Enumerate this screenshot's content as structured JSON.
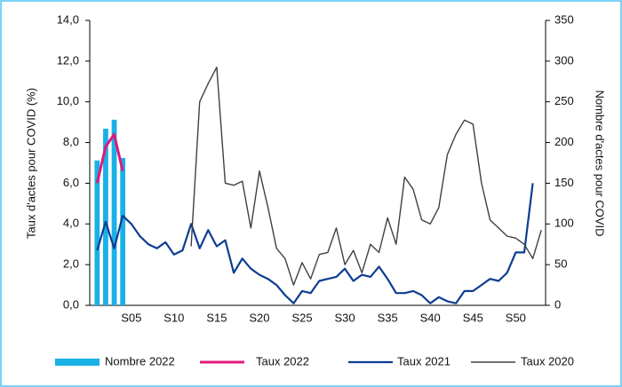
{
  "chart_data": {
    "type": "bar",
    "y_label": "Taux d'actes pour COVID (%)",
    "y2_label": "Nombre d'actes pour COVID",
    "categories": [
      null,
      null,
      null,
      null,
      "S05",
      null,
      null,
      null,
      null,
      "S10",
      null,
      null,
      null,
      null,
      "S15",
      null,
      null,
      null,
      null,
      "S20",
      null,
      null,
      null,
      null,
      "S25",
      null,
      null,
      null,
      null,
      "S30",
      null,
      null,
      null,
      null,
      "S35",
      null,
      null,
      null,
      null,
      "S40",
      null,
      null,
      null,
      null,
      "S45",
      null,
      null,
      null,
      null,
      "S50",
      null,
      null,
      null
    ],
    "ylim": [
      0,
      14
    ],
    "yticks": [
      {
        "value": 0,
        "label": "0,0"
      },
      {
        "value": 2,
        "label": "2,0"
      },
      {
        "value": 4,
        "label": "4,0"
      },
      {
        "value": 6,
        "label": "6,0"
      },
      {
        "value": 8,
        "label": "8,0"
      },
      {
        "value": 10,
        "label": "10,0"
      },
      {
        "value": 12,
        "label": "12,0"
      },
      {
        "value": 14,
        "label": "14,0"
      }
    ],
    "y2lim": [
      0,
      350
    ],
    "y2ticks": [
      0,
      50,
      100,
      150,
      200,
      250,
      300,
      350
    ],
    "legend": "bottom",
    "series": [
      {
        "name": "Nombre 2022",
        "type": "bar",
        "axis": "y2",
        "color": "#1ab0e8",
        "values": [
          178,
          217,
          228,
          181,
          null,
          null,
          null,
          null,
          null,
          null,
          null,
          null,
          null,
          null,
          null,
          null,
          null,
          null,
          null,
          null,
          null,
          null,
          null,
          null,
          null,
          null,
          null,
          null,
          null,
          null,
          null,
          null,
          null,
          null,
          null,
          null,
          null,
          null,
          null,
          null,
          null,
          null,
          null,
          null,
          null,
          null,
          null,
          null,
          null,
          null,
          null,
          null,
          null
        ]
      },
      {
        "name": "Taux 2022",
        "type": "line",
        "color": "#e0197a",
        "values": [
          6.0,
          7.8,
          8.4,
          6.6,
          null,
          null,
          null,
          null,
          null,
          null,
          null,
          null,
          null,
          null,
          null,
          null,
          null,
          null,
          null,
          null,
          null,
          null,
          null,
          null,
          null,
          null,
          null,
          null,
          null,
          null,
          null,
          null,
          null,
          null,
          null,
          null,
          null,
          null,
          null,
          null,
          null,
          null,
          null,
          null,
          null,
          null,
          null,
          null,
          null,
          null,
          null,
          null,
          null
        ]
      },
      {
        "name": "Taux 2021",
        "type": "line",
        "color": "#0d3d91",
        "values": [
          2.7,
          4.1,
          2.8,
          4.4,
          4.0,
          3.4,
          3.0,
          2.8,
          3.1,
          2.5,
          2.7,
          4.0,
          2.8,
          3.7,
          2.9,
          3.2,
          1.6,
          2.3,
          1.8,
          1.5,
          1.3,
          1.0,
          0.5,
          0.1,
          0.7,
          0.6,
          1.2,
          1.3,
          1.4,
          1.8,
          1.2,
          1.5,
          1.4,
          1.9,
          1.3,
          0.6,
          0.6,
          0.7,
          0.5,
          0.1,
          0.4,
          0.2,
          0.1,
          0.7,
          0.7,
          1.0,
          1.3,
          1.2,
          1.6,
          2.6,
          2.6,
          6.0,
          null
        ]
      },
      {
        "name": "Taux 2020",
        "type": "line",
        "color": "#404040",
        "values": [
          null,
          null,
          null,
          null,
          null,
          null,
          null,
          null,
          null,
          null,
          null,
          2.9,
          10.0,
          10.9,
          11.7,
          6.0,
          5.9,
          6.1,
          3.8,
          6.6,
          4.8,
          2.8,
          2.3,
          1.0,
          2.1,
          1.3,
          2.5,
          2.6,
          3.8,
          2.0,
          2.7,
          1.6,
          3.0,
          2.6,
          4.3,
          3.0,
          6.3,
          5.7,
          4.2,
          4.0,
          4.8,
          7.4,
          8.4,
          9.1,
          8.9,
          6.0,
          4.2,
          3.8,
          3.4,
          3.3,
          3.0,
          2.3,
          3.7
        ]
      }
    ]
  }
}
